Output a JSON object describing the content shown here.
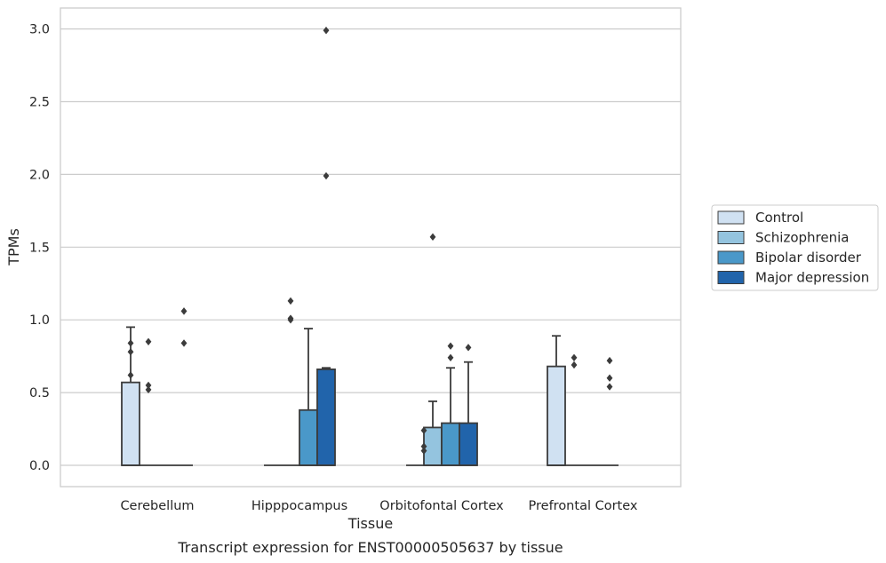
{
  "chart_data": {
    "type": "box",
    "xlabel": "Tissue",
    "ylabel": "TPMs",
    "caption": "Transcript expression for ENST00000505637 by tissue",
    "ylim": [
      -0.15,
      3.15
    ],
    "yticks": [
      0.0,
      0.5,
      1.0,
      1.5,
      2.0,
      2.5,
      3.0
    ],
    "ytick_labels": [
      "0.0",
      "0.5",
      "1.0",
      "1.5",
      "2.0",
      "2.5",
      "3.0"
    ],
    "grid": "horizontal",
    "legend_position": "right",
    "categories": [
      "Cerebellum",
      "Hipppocampus",
      "Orbitofontal Cortex",
      "Prefrontal Cortex"
    ],
    "series": [
      {
        "name": "Control",
        "color": "#d0e1f2",
        "boxes": [
          {
            "q1": 0.0,
            "median": 0.0,
            "q3": 0.57,
            "whisker_low": 0.0,
            "whisker_high": 0.95,
            "outliers": [
              0.62,
              0.78,
              0.84
            ]
          },
          {
            "q1": 0.0,
            "median": 0.0,
            "q3": 0.0,
            "whisker_low": 0.0,
            "whisker_high": 0.0,
            "outliers": []
          },
          {
            "q1": 0.0,
            "median": 0.0,
            "q3": 0.0,
            "whisker_low": 0.0,
            "whisker_high": 0.0,
            "outliers": []
          },
          {
            "q1": 0.0,
            "median": 0.0,
            "q3": 0.68,
            "whisker_low": 0.0,
            "whisker_high": 0.89,
            "outliers": []
          }
        ]
      },
      {
        "name": "Schizophrenia",
        "color": "#94c4df",
        "boxes": [
          {
            "q1": 0.0,
            "median": 0.0,
            "q3": 0.0,
            "whisker_low": 0.0,
            "whisker_high": 0.0,
            "outliers": [
              0.52,
              0.55,
              0.85
            ]
          },
          {
            "q1": 0.0,
            "median": 0.0,
            "q3": 0.0,
            "whisker_low": 0.0,
            "whisker_high": 0.0,
            "outliers": [
              1.0,
              1.01,
              1.13
            ]
          },
          {
            "q1": 0.0,
            "median": 0.0,
            "q3": 0.26,
            "whisker_low": 0.0,
            "whisker_high": 0.44,
            "outliers": [
              1.57
            ]
          },
          {
            "q1": 0.0,
            "median": 0.0,
            "q3": 0.0,
            "whisker_low": 0.0,
            "whisker_high": 0.0,
            "outliers": [
              0.69,
              0.74
            ]
          }
        ]
      },
      {
        "name": "Bipolar disorder",
        "color": "#4a98c9",
        "boxes": [
          {
            "q1": 0.0,
            "median": 0.0,
            "q3": 0.0,
            "whisker_low": 0.0,
            "whisker_high": 0.0,
            "outliers": []
          },
          {
            "q1": 0.0,
            "median": 0.0,
            "q3": 0.38,
            "whisker_low": 0.0,
            "whisker_high": 0.94,
            "outliers": []
          },
          {
            "q1": 0.0,
            "median": 0.0,
            "q3": 0.29,
            "whisker_low": 0.0,
            "whisker_high": 0.67,
            "outliers": [
              0.74,
              0.82
            ]
          },
          {
            "q1": 0.0,
            "median": 0.0,
            "q3": 0.0,
            "whisker_low": 0.0,
            "whisker_high": 0.0,
            "outliers": []
          }
        ]
      },
      {
        "name": "Major depression",
        "color": "#2164ab",
        "boxes": [
          {
            "q1": 0.0,
            "median": 0.0,
            "q3": 0.0,
            "whisker_low": 0.0,
            "whisker_high": 0.0,
            "outliers": [
              0.84,
              1.06
            ]
          },
          {
            "q1": 0.0,
            "median": 0.0,
            "q3": 0.66,
            "whisker_low": 0.0,
            "whisker_high": 0.67,
            "outliers": [
              1.99,
              2.99
            ]
          },
          {
            "q1": 0.0,
            "median": 0.0,
            "q3": 0.29,
            "whisker_low": 0.0,
            "whisker_high": 0.71,
            "outliers": [
              0.81
            ]
          },
          {
            "q1": 0.0,
            "median": 0.0,
            "q3": 0.0,
            "whisker_low": 0.0,
            "whisker_high": 0.0,
            "outliers": [
              0.54,
              0.6,
              0.72
            ]
          }
        ]
      }
    ],
    "extra_outliers": [
      {
        "category": 2,
        "series": 0,
        "values": [
          0.1,
          0.13,
          0.24
        ]
      }
    ]
  }
}
